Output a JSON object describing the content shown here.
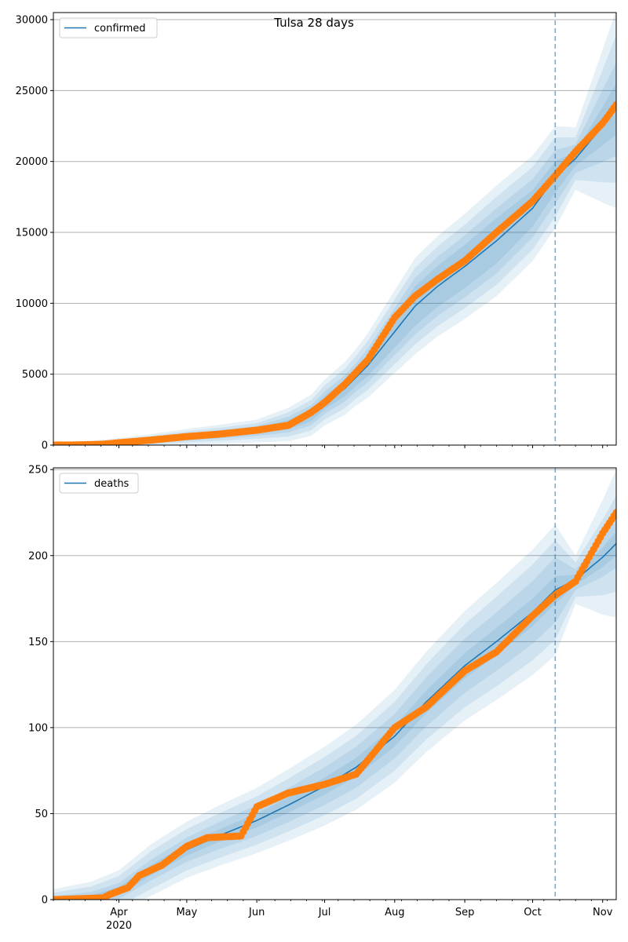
{
  "chart_data": {
    "title": "Tulsa 28 days",
    "type": "line",
    "x_axis": {
      "tick_labels": [
        "Apr",
        "May",
        "Jun",
        "Jul",
        "Aug",
        "Sep",
        "Oct",
        "Nov"
      ],
      "year_label": "2020",
      "start": "2020-03-03",
      "end": "2020-11-07"
    },
    "forecast_start": "2020-10-11",
    "colors": {
      "model": "#1f77b4",
      "observed": "#ff7f0e",
      "band": "#1f77b4",
      "grid": "#b0b0b0"
    },
    "panels": [
      {
        "legend": "confirmed",
        "legend_position": "upper left",
        "ylim": [
          0,
          30500
        ],
        "yticks": [
          0,
          5000,
          10000,
          15000,
          20000,
          25000,
          30000
        ],
        "grid": true,
        "model": [
          [
            "2020-03-03",
            0
          ],
          [
            "2020-03-15",
            30
          ],
          [
            "2020-04-01",
            150
          ],
          [
            "2020-04-15",
            330
          ],
          [
            "2020-05-01",
            580
          ],
          [
            "2020-05-15",
            750
          ],
          [
            "2020-06-01",
            1000
          ],
          [
            "2020-06-15",
            1450
          ],
          [
            "2020-06-25",
            2100
          ],
          [
            "2020-07-01",
            3000
          ],
          [
            "2020-07-10",
            4000
          ],
          [
            "2020-07-20",
            5600
          ],
          [
            "2020-08-01",
            8000
          ],
          [
            "2020-08-10",
            9800
          ],
          [
            "2020-08-20",
            11200
          ],
          [
            "2020-09-01",
            12600
          ],
          [
            "2020-09-15",
            14400
          ],
          [
            "2020-10-01",
            16700
          ],
          [
            "2020-10-11",
            18900
          ],
          [
            "2020-10-20",
            20200
          ],
          [
            "2020-11-01",
            22500
          ],
          [
            "2020-11-07",
            23700
          ]
        ],
        "band_half_widths": [
          [
            [
              "2020-03-03",
              30
            ],
            [
              "2020-06-01",
              200
            ],
            [
              "2020-07-15",
              600
            ],
            [
              "2020-08-10",
              1400
            ],
            [
              "2020-09-15",
              1600
            ],
            [
              "2020-10-11",
              1100
            ],
            [
              "2020-10-20",
              500
            ],
            [
              "2020-11-07",
              1800
            ]
          ],
          [
            [
              "2020-03-03",
              50
            ],
            [
              "2020-06-01",
              350
            ],
            [
              "2020-07-15",
              1000
            ],
            [
              "2020-08-10",
              2000
            ],
            [
              "2020-09-15",
              2300
            ],
            [
              "2020-10-11",
              1900
            ],
            [
              "2020-10-20",
              1000
            ],
            [
              "2020-11-07",
              3300
            ]
          ],
          [
            [
              "2020-03-03",
              80
            ],
            [
              "2020-06-01",
              550
            ],
            [
              "2020-07-15",
              1500
            ],
            [
              "2020-08-10",
              2700
            ],
            [
              "2020-09-15",
              3100
            ],
            [
              "2020-10-11",
              2800
            ],
            [
              "2020-10-20",
              1500
            ],
            [
              "2020-11-07",
              5200
            ]
          ],
          [
            [
              "2020-03-03",
              120
            ],
            [
              "2020-06-01",
              800
            ],
            [
              "2020-07-15",
              2000
            ],
            [
              "2020-08-10",
              3400
            ],
            [
              "2020-09-15",
              3900
            ],
            [
              "2020-10-11",
              3600
            ],
            [
              "2020-10-20",
              2200
            ],
            [
              "2020-11-07",
              7000
            ]
          ]
        ],
        "observed": [
          [
            "2020-03-03",
            0
          ],
          [
            "2020-03-15",
            20
          ],
          [
            "2020-03-25",
            60
          ],
          [
            "2020-04-01",
            170
          ],
          [
            "2020-04-15",
            350
          ],
          [
            "2020-05-01",
            600
          ],
          [
            "2020-05-15",
            770
          ],
          [
            "2020-06-01",
            1050
          ],
          [
            "2020-06-15",
            1400
          ],
          [
            "2020-06-25",
            2300
          ],
          [
            "2020-07-01",
            3000
          ],
          [
            "2020-07-10",
            4300
          ],
          [
            "2020-07-20",
            6000
          ],
          [
            "2020-08-01",
            9000
          ],
          [
            "2020-08-10",
            10500
          ],
          [
            "2020-08-20",
            11700
          ],
          [
            "2020-09-01",
            13000
          ],
          [
            "2020-09-15",
            15000
          ],
          [
            "2020-10-01",
            17200
          ],
          [
            "2020-10-11",
            19000
          ],
          [
            "2020-10-20",
            20700
          ],
          [
            "2020-11-01",
            22700
          ],
          [
            "2020-11-07",
            24000
          ]
        ]
      },
      {
        "legend": "deaths",
        "legend_position": "upper left",
        "ylim": [
          0,
          251
        ],
        "yticks": [
          0,
          50,
          100,
          150,
          200,
          250
        ],
        "grid": true,
        "model": [
          [
            "2020-03-03",
            0
          ],
          [
            "2020-03-20",
            1
          ],
          [
            "2020-04-01",
            5
          ],
          [
            "2020-04-15",
            17
          ],
          [
            "2020-05-01",
            29
          ],
          [
            "2020-05-15",
            37
          ],
          [
            "2020-06-01",
            46
          ],
          [
            "2020-06-15",
            55
          ],
          [
            "2020-07-01",
            66
          ],
          [
            "2020-07-15",
            77
          ],
          [
            "2020-08-01",
            95
          ],
          [
            "2020-08-15",
            115
          ],
          [
            "2020-09-01",
            136
          ],
          [
            "2020-09-15",
            150
          ],
          [
            "2020-10-01",
            167
          ],
          [
            "2020-10-11",
            180
          ],
          [
            "2020-10-20",
            186
          ],
          [
            "2020-11-01",
            199
          ],
          [
            "2020-11-07",
            207
          ]
        ],
        "band_half_widths": [
          [
            [
              "2020-03-03",
              1
            ],
            [
              "2020-04-15",
              3
            ],
            [
              "2020-06-01",
              4
            ],
            [
              "2020-08-01",
              6
            ],
            [
              "2020-09-15",
              8
            ],
            [
              "2020-10-11",
              8
            ],
            [
              "2020-10-20",
              3
            ],
            [
              "2020-11-07",
              7
            ]
          ],
          [
            [
              "2020-03-03",
              2
            ],
            [
              "2020-04-15",
              6
            ],
            [
              "2020-06-01",
              9
            ],
            [
              "2020-08-01",
              13
            ],
            [
              "2020-09-15",
              17
            ],
            [
              "2020-10-11",
              19
            ],
            [
              "2020-10-20",
              6
            ],
            [
              "2020-11-07",
              14
            ]
          ],
          [
            [
              "2020-03-03",
              4
            ],
            [
              "2020-04-15",
              11
            ],
            [
              "2020-06-01",
              14
            ],
            [
              "2020-08-01",
              20
            ],
            [
              "2020-09-15",
              26
            ],
            [
              "2020-10-11",
              29
            ],
            [
              "2020-10-20",
              10
            ],
            [
              "2020-11-07",
              28
            ]
          ],
          [
            [
              "2020-03-03",
              6
            ],
            [
              "2020-04-15",
              15
            ],
            [
              "2020-06-01",
              19
            ],
            [
              "2020-08-01",
              27
            ],
            [
              "2020-09-15",
              34
            ],
            [
              "2020-10-11",
              38
            ],
            [
              "2020-10-20",
              14
            ],
            [
              "2020-11-07",
              43
            ]
          ]
        ],
        "observed": [
          [
            "2020-03-03",
            0
          ],
          [
            "2020-03-25",
            1
          ],
          [
            "2020-03-28",
            3
          ],
          [
            "2020-04-05",
            7
          ],
          [
            "2020-04-10",
            14
          ],
          [
            "2020-04-20",
            20
          ],
          [
            "2020-05-01",
            31
          ],
          [
            "2020-05-10",
            36
          ],
          [
            "2020-05-25",
            37
          ],
          [
            "2020-06-01",
            54
          ],
          [
            "2020-06-15",
            62
          ],
          [
            "2020-07-01",
            67
          ],
          [
            "2020-07-15",
            73
          ],
          [
            "2020-08-01",
            100
          ],
          [
            "2020-08-15",
            112
          ],
          [
            "2020-09-01",
            133
          ],
          [
            "2020-09-15",
            144
          ],
          [
            "2020-10-01",
            165
          ],
          [
            "2020-10-11",
            177
          ],
          [
            "2020-10-20",
            185
          ],
          [
            "2020-11-01",
            213
          ],
          [
            "2020-11-07",
            225
          ]
        ]
      }
    ]
  }
}
